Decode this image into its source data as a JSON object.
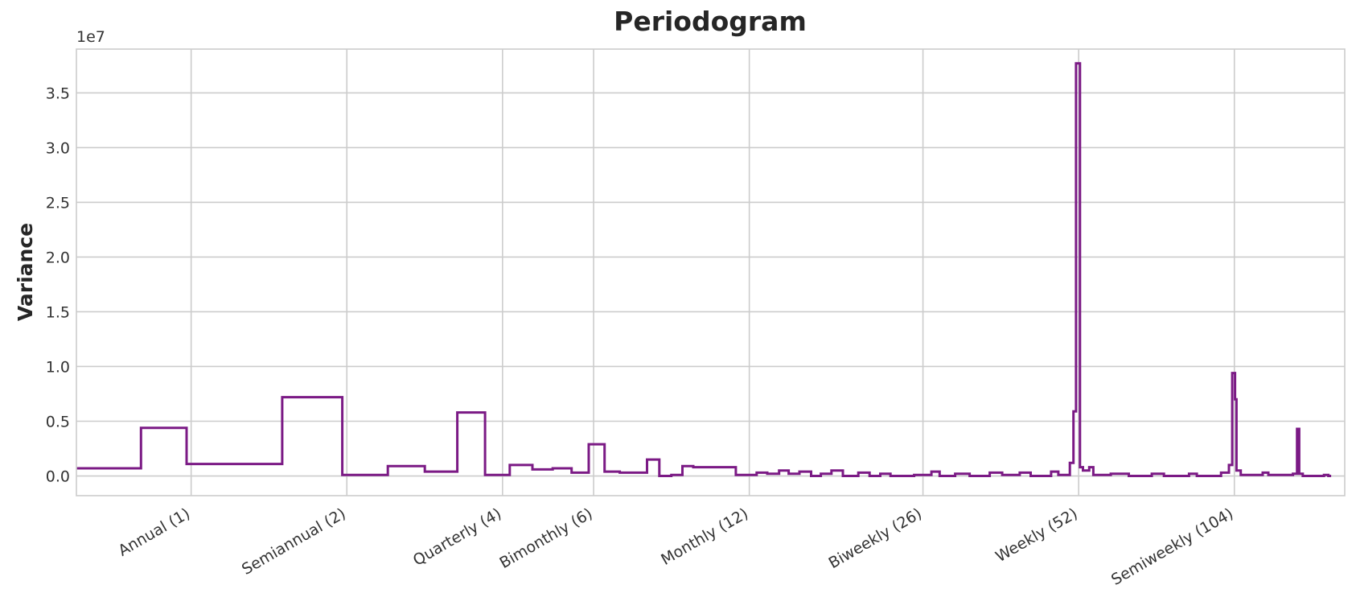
{
  "chart_data": {
    "type": "line",
    "title": "Periodogram",
    "xlabel": "",
    "ylabel": "Variance",
    "y_offset_label": "1e7",
    "x_scale": "log",
    "xlim": [
      0.6,
      170
    ],
    "ylim": [
      -0.18,
      3.9
    ],
    "grid": true,
    "legend": "none",
    "color": "#7b1a85",
    "x_ticks": [
      {
        "value": 1,
        "label": "Annual (1)"
      },
      {
        "value": 2,
        "label": "Semiannual (2)"
      },
      {
        "value": 4,
        "label": "Quarterly (4)"
      },
      {
        "value": 6,
        "label": "Bimonthly (6)"
      },
      {
        "value": 12,
        "label": "Monthly (12)"
      },
      {
        "value": 26,
        "label": "Biweekly (26)"
      },
      {
        "value": 52,
        "label": "Weekly (52)"
      },
      {
        "value": 104,
        "label": "Semiweekly (104)"
      }
    ],
    "y_ticks": [
      {
        "value": 0.0,
        "label": "0.0"
      },
      {
        "value": 0.5,
        "label": "0.5"
      },
      {
        "value": 1.0,
        "label": "1.0"
      },
      {
        "value": 1.5,
        "label": "1.5"
      },
      {
        "value": 2.0,
        "label": "2.0"
      },
      {
        "value": 2.5,
        "label": "2.5"
      },
      {
        "value": 3.0,
        "label": "3.0"
      },
      {
        "value": 3.5,
        "label": "3.5"
      }
    ],
    "series": [
      {
        "values_scale": "x 1e7",
        "points": [
          [
            0.6,
            0.07
          ],
          [
            0.8,
            0.07
          ],
          [
            0.8,
            0.44
          ],
          [
            0.98,
            0.44
          ],
          [
            0.98,
            0.11
          ],
          [
            1.5,
            0.11
          ],
          [
            1.5,
            0.72
          ],
          [
            1.96,
            0.72
          ],
          [
            1.96,
            0.01
          ],
          [
            2.4,
            0.01
          ],
          [
            2.4,
            0.09
          ],
          [
            2.83,
            0.09
          ],
          [
            2.83,
            0.04
          ],
          [
            3.27,
            0.04
          ],
          [
            3.27,
            0.58
          ],
          [
            3.7,
            0.58
          ],
          [
            3.7,
            0.01
          ],
          [
            4.13,
            0.01
          ],
          [
            4.13,
            0.1
          ],
          [
            4.57,
            0.1
          ],
          [
            4.57,
            0.06
          ],
          [
            5.0,
            0.06
          ],
          [
            5.0,
            0.07
          ],
          [
            5.44,
            0.07
          ],
          [
            5.44,
            0.03
          ],
          [
            5.87,
            0.03
          ],
          [
            5.87,
            0.29
          ],
          [
            6.3,
            0.29
          ],
          [
            6.3,
            0.04
          ],
          [
            6.74,
            0.04
          ],
          [
            6.74,
            0.03
          ],
          [
            7.17,
            0.03
          ],
          [
            7.17,
            0.03
          ],
          [
            7.61,
            0.03
          ],
          [
            7.61,
            0.15
          ],
          [
            8.04,
            0.15
          ],
          [
            8.04,
            0.0
          ],
          [
            8.48,
            0.0
          ],
          [
            8.48,
            0.01
          ],
          [
            8.91,
            0.01
          ],
          [
            8.91,
            0.09
          ],
          [
            9.35,
            0.09
          ],
          [
            9.35,
            0.08
          ],
          [
            10.3,
            0.08
          ],
          [
            10.3,
            0.08
          ],
          [
            11.3,
            0.08
          ],
          [
            11.3,
            0.01
          ],
          [
            12.4,
            0.01
          ],
          [
            12.4,
            0.03
          ],
          [
            13.0,
            0.03
          ],
          [
            13.0,
            0.02
          ],
          [
            13.7,
            0.02
          ],
          [
            13.7,
            0.05
          ],
          [
            14.3,
            0.05
          ],
          [
            14.3,
            0.02
          ],
          [
            15.0,
            0.02
          ],
          [
            15.0,
            0.04
          ],
          [
            15.8,
            0.04
          ],
          [
            15.8,
            0.0
          ],
          [
            16.5,
            0.0
          ],
          [
            16.5,
            0.02
          ],
          [
            17.3,
            0.02
          ],
          [
            17.3,
            0.05
          ],
          [
            18.2,
            0.05
          ],
          [
            18.2,
            0.0
          ],
          [
            19.5,
            0.0
          ],
          [
            19.5,
            0.03
          ],
          [
            20.5,
            0.03
          ],
          [
            20.5,
            0.0
          ],
          [
            21.5,
            0.0
          ],
          [
            21.5,
            0.02
          ],
          [
            22.5,
            0.02
          ],
          [
            22.5,
            0.0
          ],
          [
            25.0,
            0.0
          ],
          [
            25.0,
            0.01
          ],
          [
            27.0,
            0.01
          ],
          [
            27.0,
            0.04
          ],
          [
            28.0,
            0.04
          ],
          [
            28.0,
            0.0
          ],
          [
            30.0,
            0.0
          ],
          [
            30.0,
            0.02
          ],
          [
            32.0,
            0.02
          ],
          [
            32.0,
            0.0
          ],
          [
            35.0,
            0.0
          ],
          [
            35.0,
            0.03
          ],
          [
            37.0,
            0.03
          ],
          [
            37.0,
            0.01
          ],
          [
            40.0,
            0.01
          ],
          [
            40.0,
            0.03
          ],
          [
            42.0,
            0.03
          ],
          [
            42.0,
            0.0
          ],
          [
            46.0,
            0.0
          ],
          [
            46.0,
            0.04
          ],
          [
            47.5,
            0.04
          ],
          [
            47.5,
            0.01
          ],
          [
            50.0,
            0.01
          ],
          [
            50.0,
            0.12
          ],
          [
            50.8,
            0.12
          ],
          [
            50.8,
            0.59
          ],
          [
            51.4,
            0.59
          ],
          [
            51.4,
            3.77
          ],
          [
            52.3,
            3.77
          ],
          [
            52.3,
            0.08
          ],
          [
            53.0,
            0.08
          ],
          [
            53.0,
            0.05
          ],
          [
            54.5,
            0.05
          ],
          [
            54.5,
            0.08
          ],
          [
            55.5,
            0.08
          ],
          [
            55.5,
            0.01
          ],
          [
            60.0,
            0.01
          ],
          [
            60.0,
            0.02
          ],
          [
            65.0,
            0.02
          ],
          [
            65.0,
            0.0
          ],
          [
            72.0,
            0.0
          ],
          [
            72.0,
            0.02
          ],
          [
            76.0,
            0.02
          ],
          [
            76.0,
            0.0
          ],
          [
            85.0,
            0.0
          ],
          [
            85.0,
            0.02
          ],
          [
            88.0,
            0.02
          ],
          [
            88.0,
            0.0
          ],
          [
            98.0,
            0.0
          ],
          [
            98.0,
            0.03
          ],
          [
            101.5,
            0.03
          ],
          [
            101.5,
            0.1
          ],
          [
            103.0,
            0.1
          ],
          [
            103.0,
            0.94
          ],
          [
            104.3,
            0.94
          ],
          [
            104.3,
            0.7
          ],
          [
            105.0,
            0.7
          ],
          [
            105.0,
            0.05
          ],
          [
            107.0,
            0.05
          ],
          [
            107.0,
            0.01
          ],
          [
            118.0,
            0.01
          ],
          [
            118.0,
            0.03
          ],
          [
            121.0,
            0.03
          ],
          [
            121.0,
            0.01
          ],
          [
            135.0,
            0.01
          ],
          [
            135.0,
            0.02
          ],
          [
            137.5,
            0.02
          ],
          [
            137.5,
            0.43
          ],
          [
            138.8,
            0.43
          ],
          [
            138.8,
            0.02
          ],
          [
            141.0,
            0.02
          ],
          [
            141.0,
            0.0
          ],
          [
            155.0,
            0.0
          ],
          [
            155.0,
            0.01
          ],
          [
            158.0,
            0.01
          ],
          [
            158.0,
            0.0
          ],
          [
            160.0,
            0.0
          ]
        ]
      }
    ]
  }
}
